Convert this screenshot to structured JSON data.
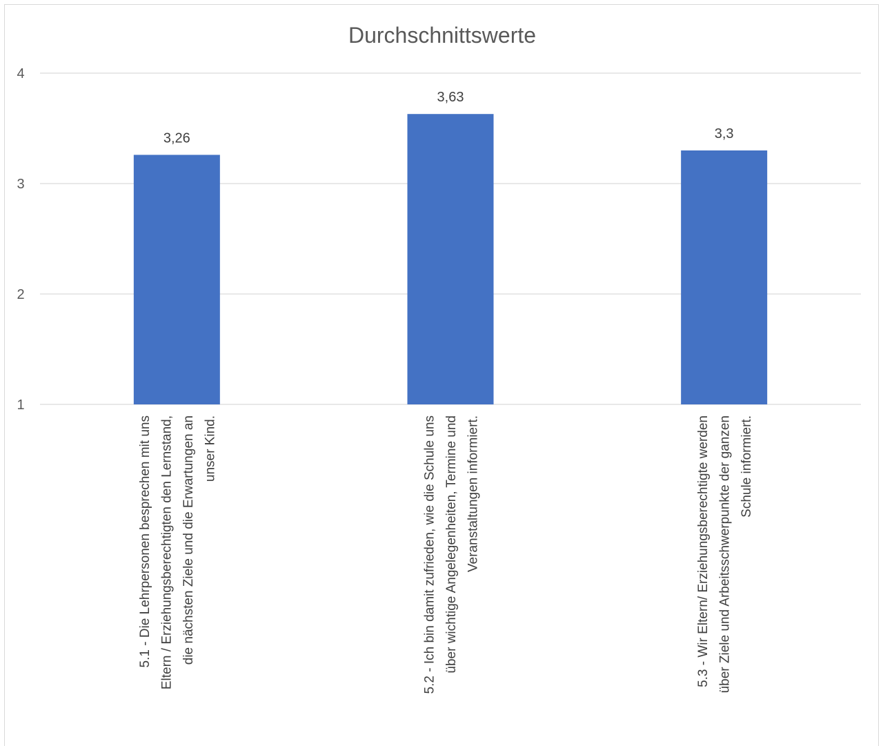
{
  "chart_data": {
    "type": "bar",
    "title": "Durchschnittswerte",
    "xlabel": "",
    "ylabel": "",
    "ylim": [
      1,
      4
    ],
    "yticks": [
      "1",
      "2",
      "3",
      "4"
    ],
    "grid": true,
    "legend": "none",
    "bar_color": "#4472C4",
    "categories": [
      "5.1 - Die Lehrpersonen besprechen mit uns Eltern / Erziehungsberechtigten den Lernstand, die nächsten Ziele und die Erwartungen an unser Kind.",
      "5.2 - Ich bin damit zufrieden, wie die Schule uns über wichtige Angelegenheiten, Termine und Veranstaltungen informiert.",
      "5.3 - Wir Eltern/ Erziehungsberechtigte werden über Ziele und Arbeitsschwerpunkte der ganzen Schule informiert."
    ],
    "category_lines": [
      [
        "5.1 - Die Lehrpersonen besprechen mit uns",
        "Eltern / Erziehungsberechtigten den Lernstand,",
        "die nächsten Ziele und die Erwartungen an",
        "unser Kind."
      ],
      [
        "5.2 - Ich bin damit zufrieden, wie die Schule uns",
        "über wichtige Angelegenheiten, Termine und",
        "Veranstaltungen informiert."
      ],
      [
        "5.3 - Wir Eltern/ Erziehungsberechtigte werden",
        "über Ziele und Arbeitsschwerpunkte der ganzen",
        "Schule informiert."
      ]
    ],
    "values": [
      3.26,
      3.63,
      3.3
    ],
    "data_labels": [
      "3,26",
      "3,63",
      "3,3"
    ]
  }
}
